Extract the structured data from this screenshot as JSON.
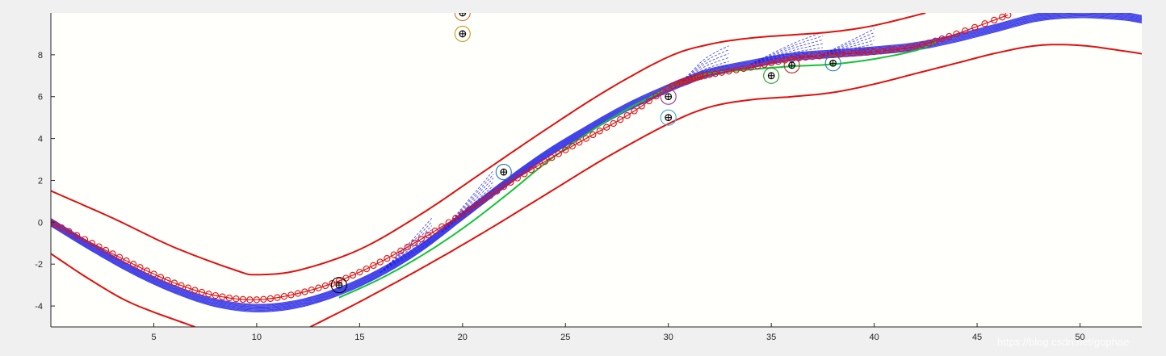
{
  "window": {
    "background": "#f0f0f0",
    "axes_background": "#fffffb"
  },
  "watermark": "https://blog.csdn.net/gophae",
  "chart_data": {
    "type": "line",
    "title": "",
    "xlabel": "",
    "ylabel": "",
    "xlim": [
      0,
      53
    ],
    "ylim": [
      -5,
      10
    ],
    "xticks": [
      5,
      10,
      15,
      20,
      25,
      30,
      35,
      40,
      45,
      50
    ],
    "yticks": [
      -4,
      -2,
      0,
      2,
      4,
      6,
      8
    ],
    "grid": false,
    "legend": null,
    "series": [
      {
        "role": "boundary",
        "color": "#e01010",
        "x": [
          0,
          3,
          6,
          9,
          10,
          12,
          15,
          18,
          21,
          24,
          27,
          30,
          32,
          34,
          36,
          38,
          40,
          42.5
        ],
        "y": [
          1.5,
          0.2,
          -1.2,
          -2.3,
          -2.5,
          -2.3,
          -1.3,
          0.4,
          2.4,
          4.4,
          6.3,
          7.9,
          8.5,
          8.8,
          8.95,
          9.1,
          9.4,
          10.0
        ]
      },
      {
        "role": "boundary",
        "color": "#e01010",
        "x": [
          0,
          2,
          4,
          7
        ],
        "y": [
          -1.5,
          -2.8,
          -3.9,
          -5.0
        ]
      },
      {
        "role": "boundary",
        "color": "#e01010",
        "x": [
          12.6,
          15,
          18,
          21,
          24,
          27,
          30,
          32,
          34,
          36,
          38,
          40,
          42,
          44,
          46,
          48,
          50,
          52,
          53
        ],
        "y": [
          -5.0,
          -3.8,
          -2.2,
          -0.5,
          1.3,
          3.1,
          4.7,
          5.5,
          5.85,
          6.0,
          6.2,
          6.6,
          7.1,
          7.6,
          8.1,
          8.45,
          8.45,
          8.2,
          8.05
        ]
      },
      {
        "role": "trajectory-blue",
        "color": "#1f1fe6",
        "x": [
          0,
          2,
          4,
          6,
          8,
          10,
          12,
          14,
          16,
          18,
          20,
          22,
          24,
          26,
          28,
          30,
          31,
          32,
          34,
          36,
          38,
          40,
          42,
          44,
          46,
          48,
          50,
          52,
          53
        ],
        "y": [
          0,
          -1.2,
          -2.3,
          -3.2,
          -3.85,
          -4.1,
          -3.9,
          -3.3,
          -2.4,
          -1.2,
          0.3,
          1.8,
          3.2,
          4.4,
          5.5,
          6.4,
          6.8,
          7.15,
          7.55,
          7.9,
          8.05,
          8.2,
          8.4,
          8.8,
          9.3,
          9.8,
          9.95,
          9.85,
          9.7
        ]
      },
      {
        "role": "reference-green",
        "color": "#15c23b",
        "x": [
          14,
          16,
          18,
          20,
          22,
          24,
          26,
          28,
          30,
          31,
          32,
          34,
          36,
          38,
          40,
          42,
          43
        ],
        "y": [
          -3.6,
          -2.7,
          -1.6,
          -0.3,
          1.2,
          2.8,
          4.2,
          5.4,
          6.4,
          6.8,
          7.1,
          7.3,
          7.45,
          7.55,
          7.8,
          8.2,
          8.6
        ]
      },
      {
        "role": "planned-red-circles",
        "color": "#e01010",
        "x": [
          0,
          2,
          4,
          6,
          8,
          10,
          12,
          14,
          16,
          18,
          20,
          22,
          24,
          26,
          28,
          30,
          31,
          32,
          34,
          36,
          38,
          40,
          42,
          44,
          46.5
        ],
        "y": [
          0,
          -1.0,
          -2.0,
          -2.9,
          -3.5,
          -3.7,
          -3.4,
          -2.8,
          -1.9,
          -0.8,
          0.4,
          1.7,
          2.9,
          4.0,
          5.1,
          6.4,
          6.8,
          7.05,
          7.4,
          7.8,
          8.0,
          8.15,
          8.4,
          9.0,
          9.9
        ]
      }
    ],
    "markers": [
      {
        "x": 14,
        "y": -3.0,
        "ring_color": "#000000"
      },
      {
        "x": 20,
        "y": 9.0,
        "ring_color": "#c8961e"
      },
      {
        "x": 20,
        "y": 10.0,
        "ring_color": "#e06a2a"
      },
      {
        "x": 22,
        "y": 2.4,
        "ring_color": "#1f77b4"
      },
      {
        "x": 30,
        "y": 6.0,
        "ring_color": "#9b30a0"
      },
      {
        "x": 30,
        "y": 5.0,
        "ring_color": "#3fa7d6"
      },
      {
        "x": 35,
        "y": 7.0,
        "ring_color": "#1e9a2a"
      },
      {
        "x": 36,
        "y": 7.5,
        "ring_color": "#b03030"
      },
      {
        "x": 38,
        "y": 7.6,
        "ring_color": "#1f77b4"
      }
    ]
  }
}
